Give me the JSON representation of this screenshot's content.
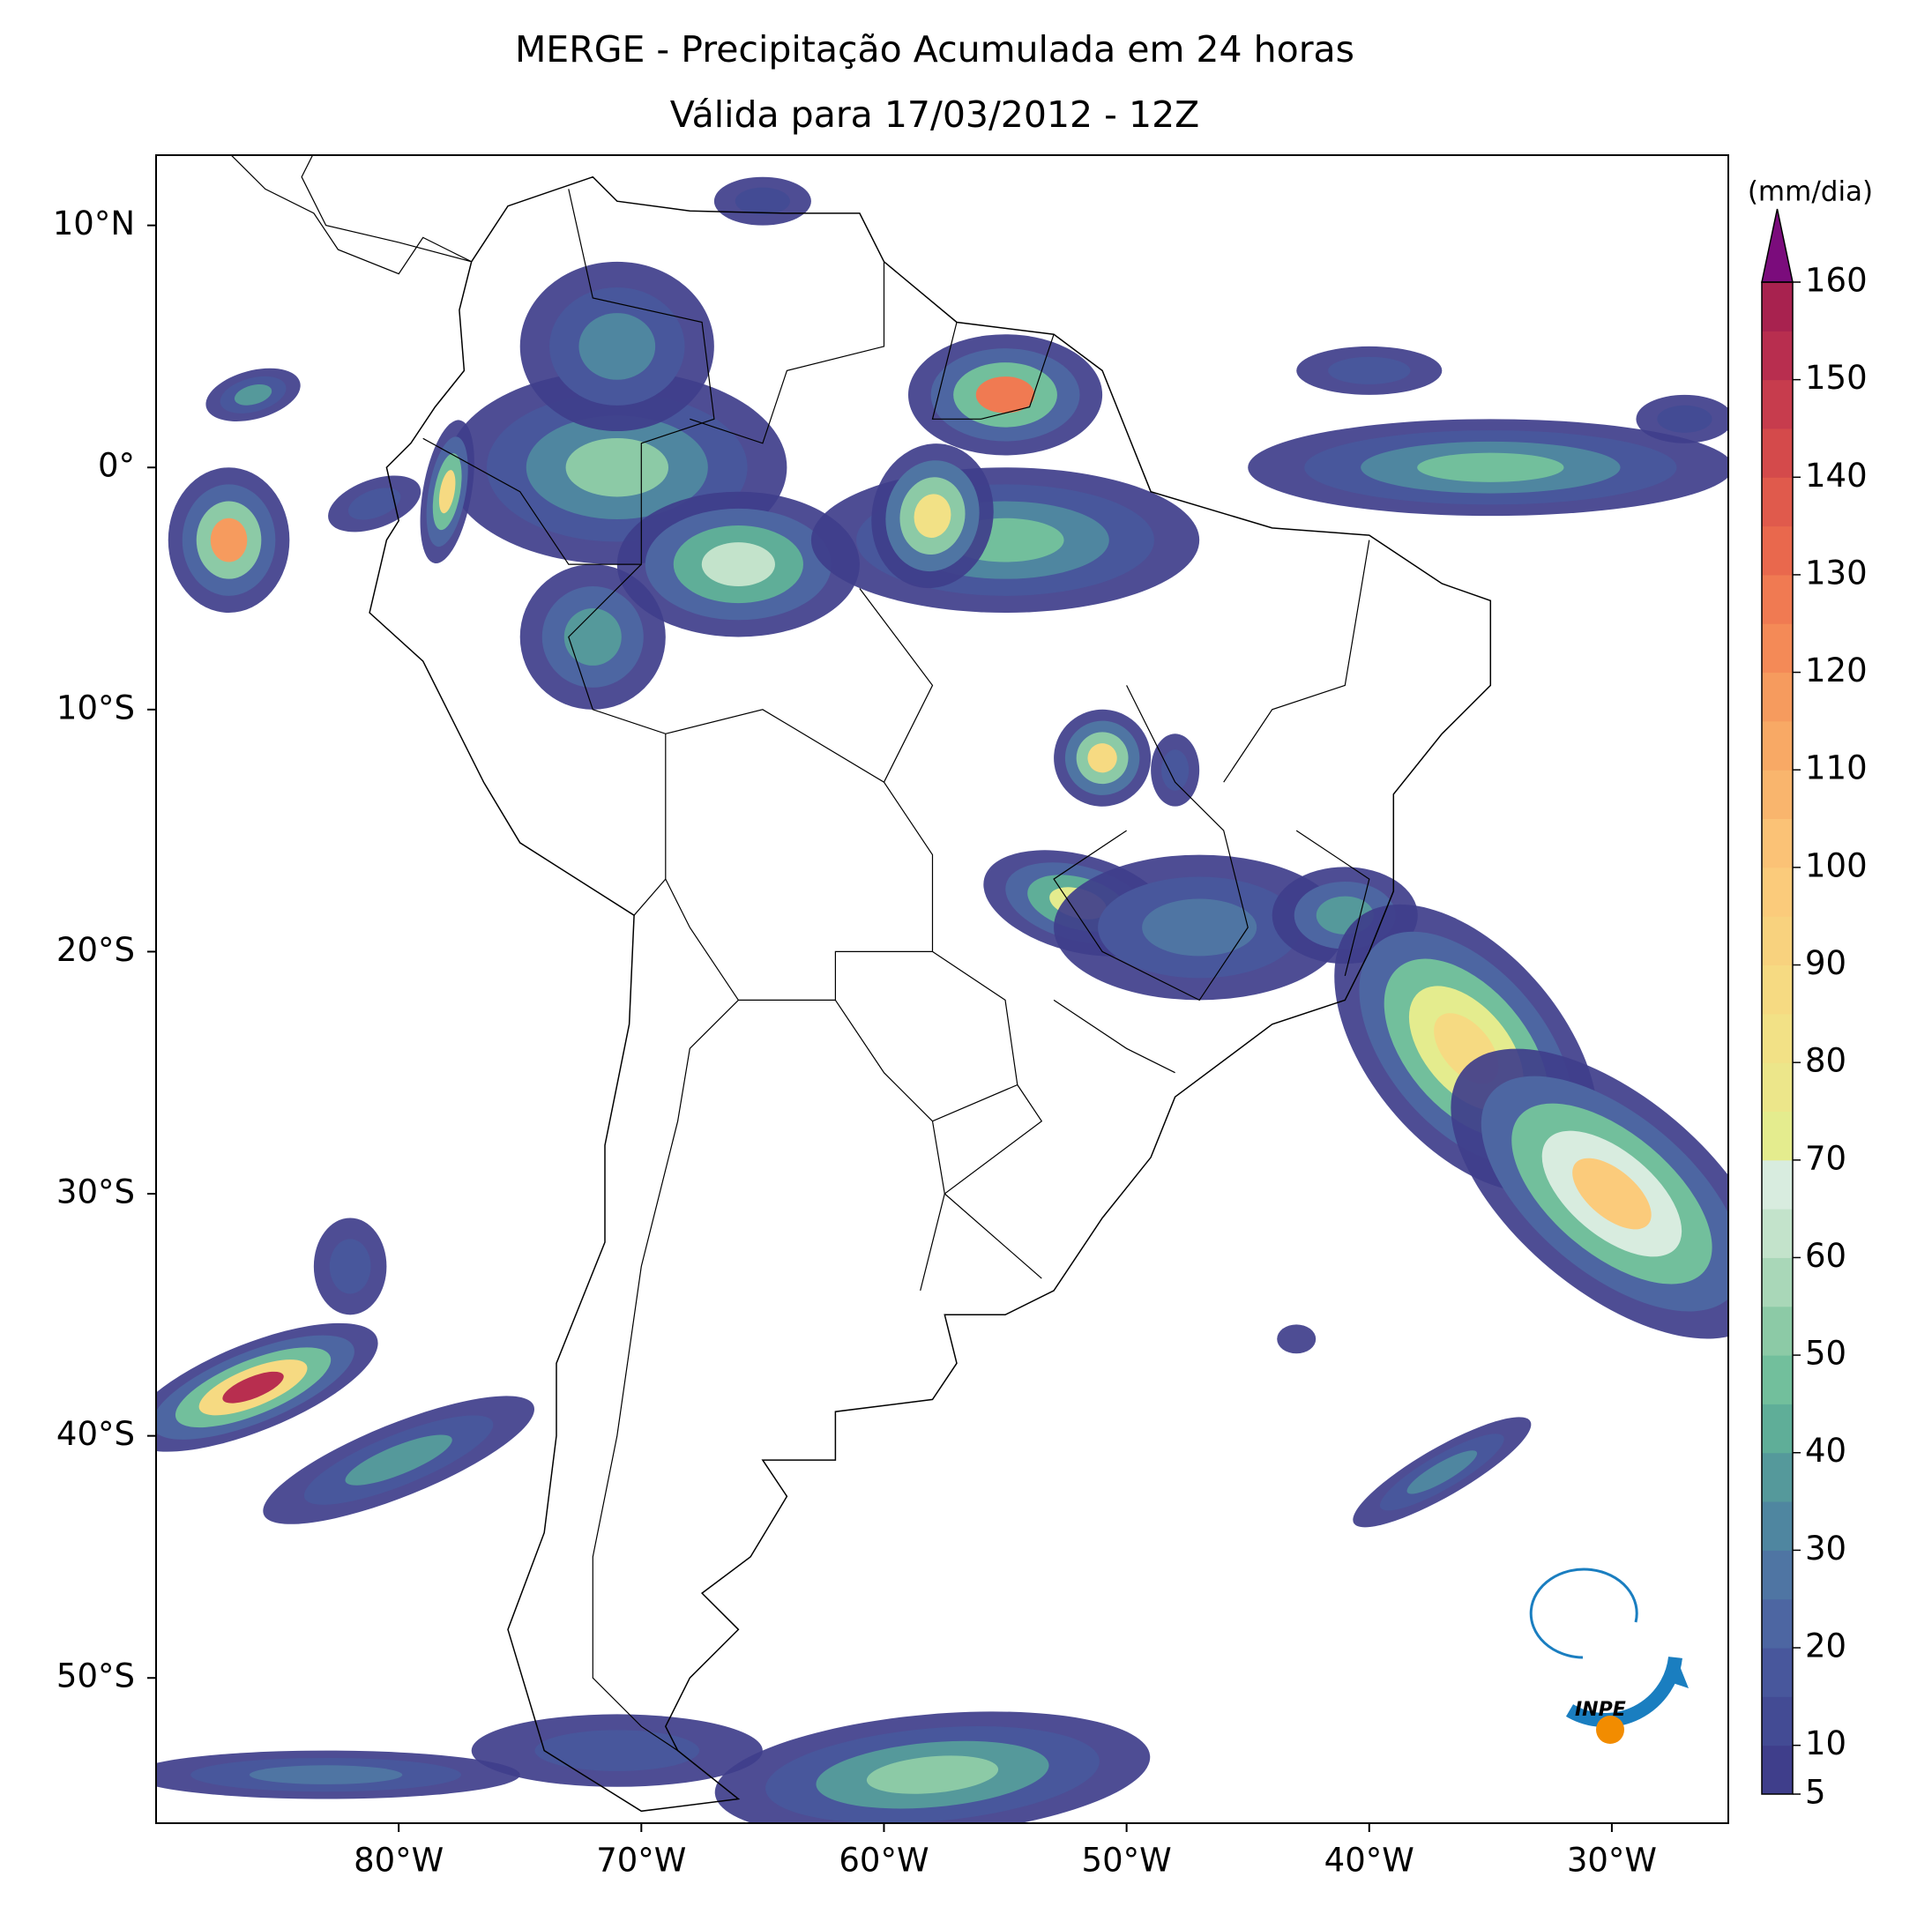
{
  "title": [
    "MERGE - Precipitação Acumulada em 24 horas",
    "Válida para 17/03/2012 - 12Z"
  ],
  "map": {
    "xlim": [
      -90,
      -25.2
    ],
    "ylim": [
      -56,
      12.9
    ],
    "xticks": [
      {
        "value": -80,
        "label": "80°W"
      },
      {
        "value": -70,
        "label": "70°W"
      },
      {
        "value": -60,
        "label": "60°W"
      },
      {
        "value": -50,
        "label": "50°W"
      },
      {
        "value": -40,
        "label": "40°W"
      },
      {
        "value": -30,
        "label": "30°W"
      }
    ],
    "yticks": [
      {
        "value": 10,
        "label": "10°N"
      },
      {
        "value": 0,
        "label": "0°"
      },
      {
        "value": -10,
        "label": "10°S"
      },
      {
        "value": -20,
        "label": "20°S"
      },
      {
        "value": -30,
        "label": "30°S"
      },
      {
        "value": -40,
        "label": "40°S"
      },
      {
        "value": -50,
        "label": "50°S"
      }
    ]
  },
  "colorbar": {
    "label": "(mm/dia)",
    "ticks": [
      5,
      10,
      20,
      30,
      40,
      50,
      60,
      70,
      80,
      90,
      100,
      110,
      120,
      130,
      140,
      150,
      160
    ],
    "levels": [
      5,
      10,
      15,
      20,
      25,
      30,
      35,
      40,
      45,
      50,
      55,
      60,
      65,
      70,
      75,
      80,
      85,
      90,
      95,
      100,
      105,
      110,
      115,
      120,
      125,
      130,
      135,
      140,
      145,
      150,
      155,
      160
    ],
    "colors": [
      "#3f3e8b",
      "#434b94",
      "#48579c",
      "#4d66a2",
      "#4f75a3",
      "#4f86a0",
      "#55999b",
      "#5fae98",
      "#72bf9c",
      "#8ccaa6",
      "#a9d7b8",
      "#c3e3cb",
      "#d8ecdf",
      "#e4ec8e",
      "#ece68a",
      "#f2e186",
      "#f6da82",
      "#f8d27e",
      "#fbcb7b",
      "#fbc276",
      "#f9b56d",
      "#f8a965",
      "#f69b5e",
      "#f48a57",
      "#f07a52",
      "#e9684d",
      "#e05a4c",
      "#d44a4b",
      "#c73c4d",
      "#b82e4f",
      "#a8224f"
    ],
    "extend_color": "#7b0c7c"
  },
  "logo": {
    "text": "INPE"
  }
}
